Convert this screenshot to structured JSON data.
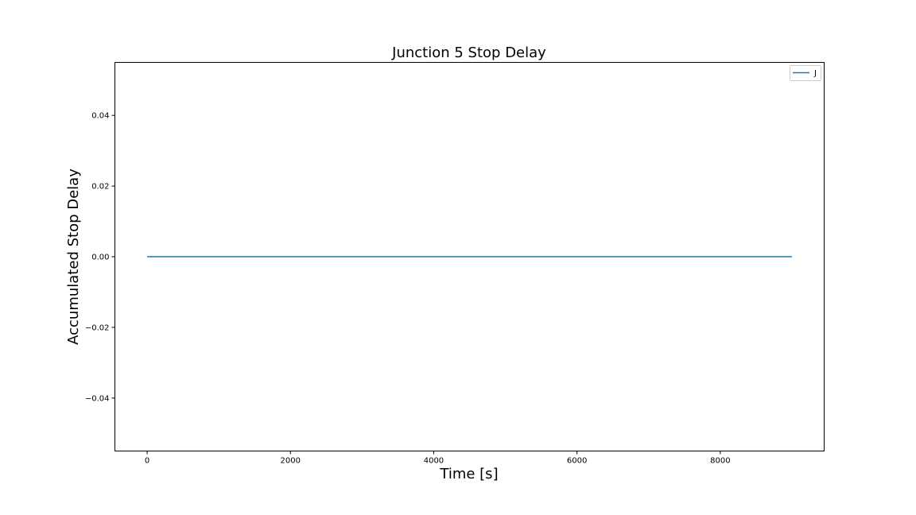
{
  "chart_data": {
    "type": "line",
    "title": "Junction 5 Stop Delay",
    "xlabel": "Time [s]",
    "ylabel": "Accumulated Stop Delay",
    "xlim": [
      -450,
      9450
    ],
    "ylim": [
      -0.055,
      0.055
    ],
    "xticks": [
      0,
      2000,
      4000,
      6000,
      8000
    ],
    "xtick_labels": [
      "0",
      "2000",
      "4000",
      "6000",
      "8000"
    ],
    "yticks": [
      -0.04,
      -0.02,
      0.0,
      0.02,
      0.04
    ],
    "ytick_labels": [
      "−0.04",
      "−0.02",
      "0.00",
      "0.02",
      "0.04"
    ],
    "grid": false,
    "legend_position": "top-right",
    "series": [
      {
        "name": "J",
        "color": "#1f77b4",
        "x": [
          0,
          9000
        ],
        "y": [
          0,
          0
        ]
      }
    ]
  }
}
